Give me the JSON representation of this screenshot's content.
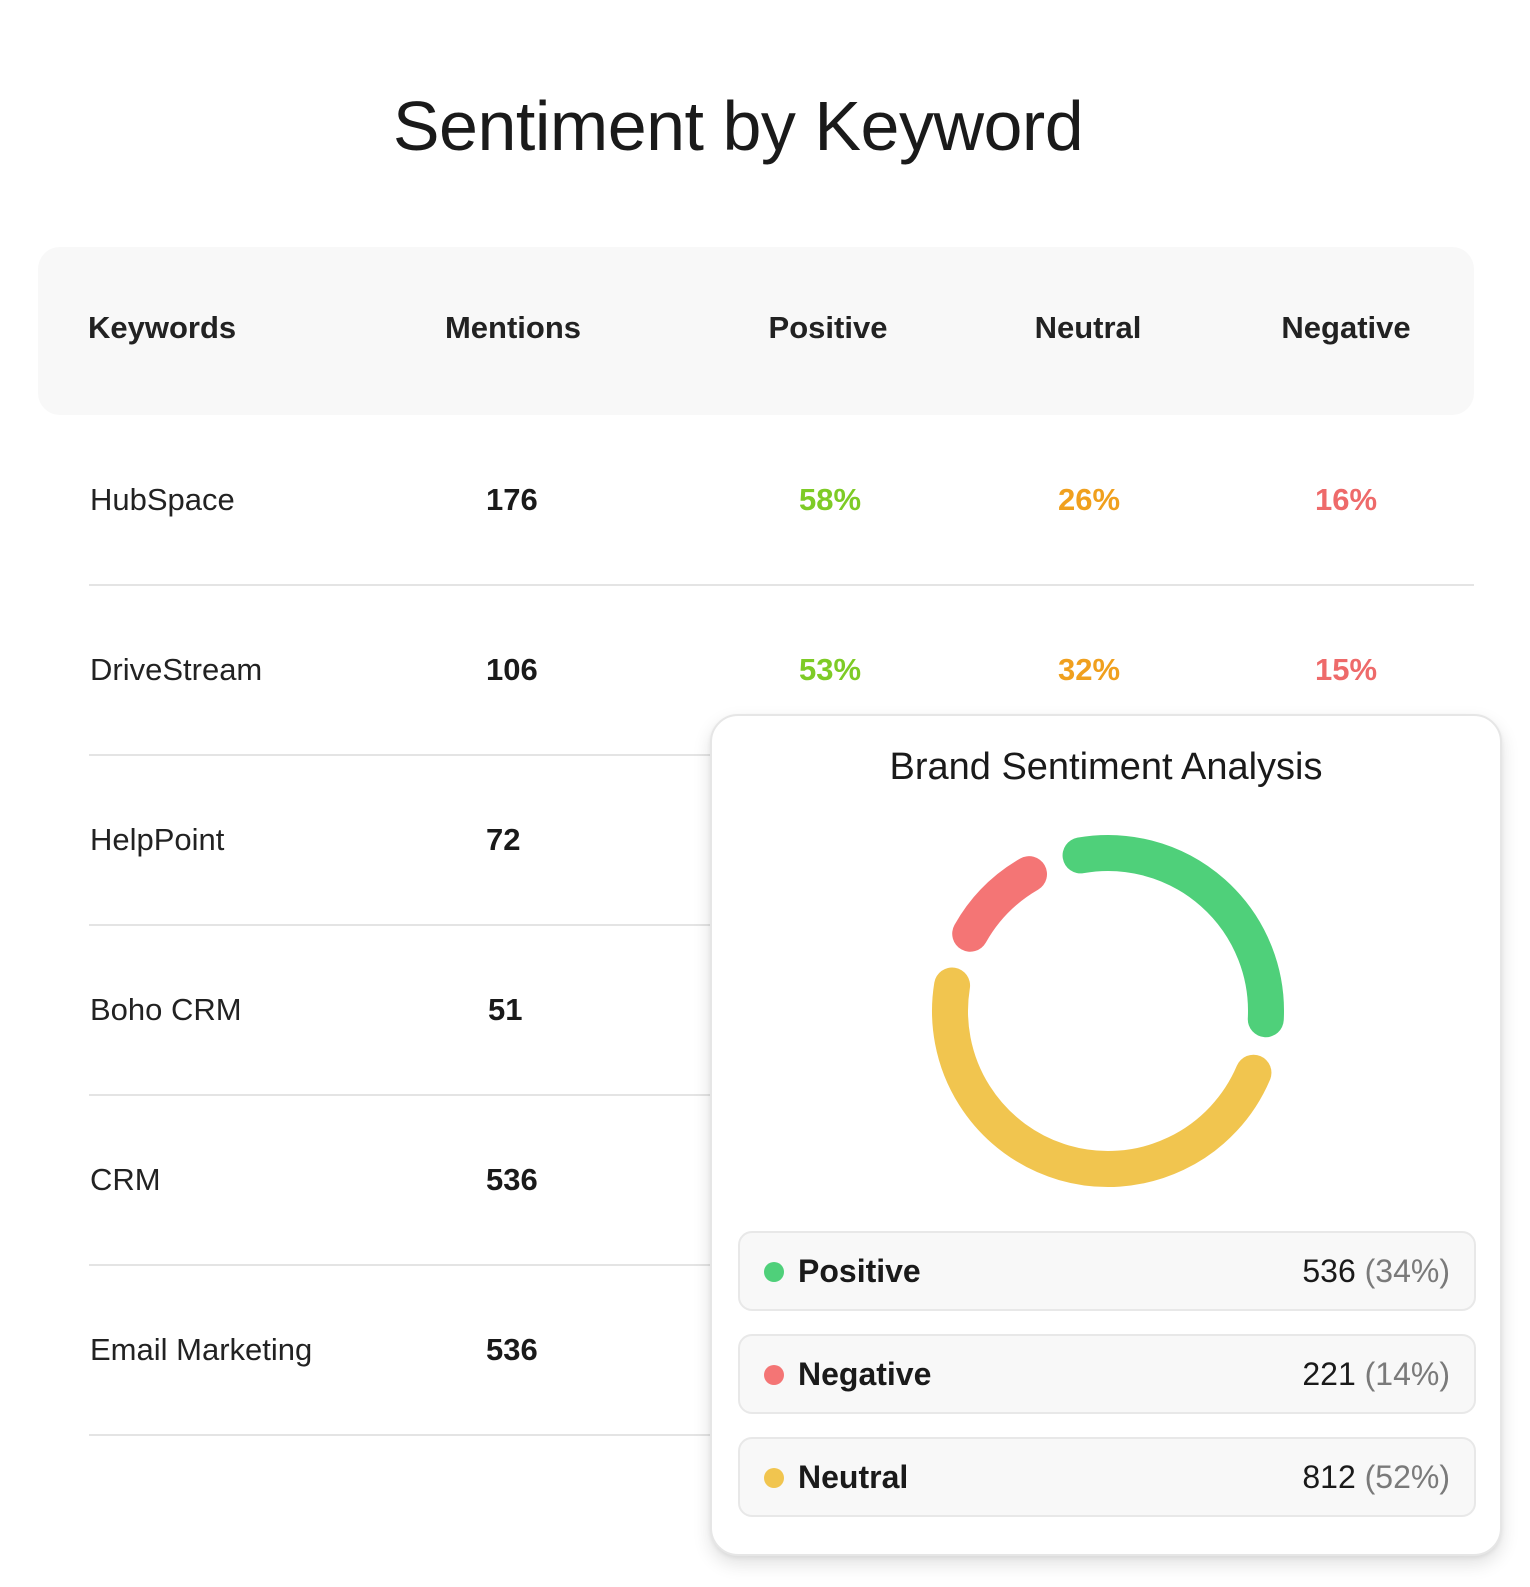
{
  "title": "Sentiment by Keyword",
  "table": {
    "headers": {
      "keyword": "Keywords",
      "mentions": "Mentions",
      "positive": "Positive",
      "neutral": "Neutral",
      "negative": "Negative"
    },
    "rows": [
      {
        "keyword": "HubSpace",
        "mentions": "176",
        "positive": "58%",
        "neutral": "26%",
        "negative": "16%"
      },
      {
        "keyword": "DriveStream",
        "mentions": "106",
        "positive": "53%",
        "neutral": "32%",
        "negative": "15%"
      },
      {
        "keyword": "HelpPoint",
        "mentions": "72"
      },
      {
        "keyword": "Boho CRM",
        "mentions": "51"
      },
      {
        "keyword": "CRM",
        "mentions": "536"
      },
      {
        "keyword": "Email Marketing",
        "mentions": "536"
      }
    ]
  },
  "colors": {
    "positive_text": "#7ecb26",
    "neutral_text": "#f0a01e",
    "negative_text": "#ee6a6a",
    "positive": "#4fd07a",
    "negative": "#f47575",
    "neutral": "#f1c54f"
  },
  "card": {
    "title": "Brand Sentiment Analysis",
    "legend": [
      {
        "label": "Positive",
        "count": "536",
        "pct": "(34%)"
      },
      {
        "label": "Negative",
        "count": "221",
        "pct": "(14%)"
      },
      {
        "label": "Neutral",
        "count": "812",
        "pct": "(52%)"
      }
    ]
  },
  "chart_data": {
    "type": "pie",
    "title": "Brand Sentiment Analysis",
    "categories": [
      "Positive",
      "Negative",
      "Neutral"
    ],
    "values": [
      536,
      221,
      812
    ],
    "percentages": [
      34,
      14,
      52
    ],
    "donut": true
  }
}
